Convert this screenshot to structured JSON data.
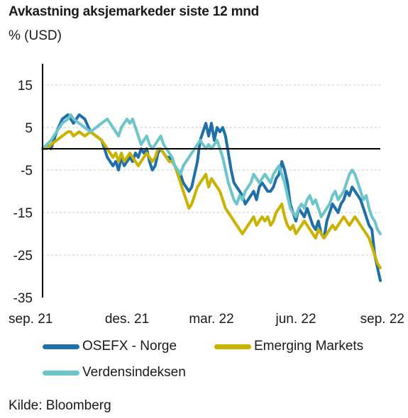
{
  "title": "Avkastning aksjemarkeder siste 12 mnd",
  "subtitle": "% (USD)",
  "source": "Kilde: Bloomberg",
  "colors": {
    "osefx": "#1f6fa8",
    "emerging": "#c9b200",
    "world": "#6cc5c8",
    "axis": "#000000",
    "grid": "#c8c8c8"
  },
  "chart_data": {
    "type": "line",
    "ylabel": "% (USD)",
    "ylim": [
      -35,
      20
    ],
    "yticks": [
      15,
      5,
      -5,
      -15,
      -25,
      -35
    ],
    "xlim": [
      0,
      12
    ],
    "xticks": [
      {
        "label": "sep. 21",
        "month": 0
      },
      {
        "label": "des. 21",
        "month": 3
      },
      {
        "label": "mar. 22",
        "month": 6
      },
      {
        "label": "jun. 22",
        "month": 9
      },
      {
        "label": "sep. 22",
        "month": 12
      }
    ],
    "grid": "horizontal dashed",
    "zero_line": true,
    "legend": "bottom",
    "series": [
      {
        "name": "OSEFX - Norge",
        "color": "#1f6fa8",
        "x": [
          0,
          0.15,
          0.3,
          0.5,
          0.7,
          0.9,
          1.0,
          1.1,
          1.3,
          1.5,
          1.7,
          1.9,
          2.1,
          2.3,
          2.5,
          2.6,
          2.7,
          2.8,
          2.9,
          3.0,
          3.1,
          3.2,
          3.3,
          3.4,
          3.5,
          3.6,
          3.7,
          3.8,
          3.9,
          4.0,
          4.1,
          4.2,
          4.3,
          4.4,
          4.5,
          4.6,
          4.7,
          4.8,
          4.9,
          5.0,
          5.1,
          5.2,
          5.3,
          5.4,
          5.5,
          5.6,
          5.7,
          5.8,
          5.9,
          6.0,
          6.1,
          6.2,
          6.3,
          6.4,
          6.5,
          6.6,
          6.7,
          6.8,
          6.9,
          7.0,
          7.1,
          7.2,
          7.3,
          7.4,
          7.5,
          7.6,
          7.7,
          7.8,
          7.9,
          8.0,
          8.1,
          8.2,
          8.3,
          8.4,
          8.5,
          8.6,
          8.7,
          8.8,
          8.9,
          9.0,
          9.1,
          9.2,
          9.3,
          9.4,
          9.5,
          9.6,
          9.7,
          9.8,
          9.9,
          10.0,
          10.1,
          10.2,
          10.3,
          10.4,
          10.5,
          10.6,
          10.7,
          10.8,
          10.9,
          11.0,
          11.1,
          11.2,
          11.3,
          11.4,
          11.5,
          11.6,
          11.7,
          11.8,
          11.9,
          12.0
        ],
        "values": [
          0,
          1,
          0,
          4,
          7,
          8,
          7,
          6,
          8,
          7,
          4,
          3,
          2,
          -2,
          -4,
          -3,
          -5,
          -2,
          -4,
          -3,
          -2,
          -3,
          -1,
          -2,
          0,
          -1,
          0,
          -3,
          -5,
          -4,
          -1,
          0,
          -1,
          -2,
          -2,
          -3,
          -4,
          -5,
          -6,
          -8,
          -9,
          -10,
          -9,
          -6,
          -3,
          2,
          4,
          6,
          3,
          6,
          2,
          5,
          4,
          5,
          3,
          -1,
          -5,
          -8,
          -9,
          -10,
          -11,
          -13,
          -12,
          -11,
          -10,
          -12,
          -9,
          -8,
          -9,
          -10,
          -10,
          -9,
          -7,
          -6,
          -3,
          -5,
          -8,
          -13,
          -15,
          -17,
          -14,
          -15,
          -16,
          -14,
          -16,
          -18,
          -19,
          -17,
          -20,
          -21,
          -17,
          -15,
          -13,
          -14,
          -15,
          -13,
          -12,
          -10,
          -11,
          -9,
          -10,
          -11,
          -12,
          -14,
          -16,
          -18,
          -19,
          -25,
          -28,
          -31
        ]
      },
      {
        "name": "Emerging Markets",
        "color": "#c9b200",
        "x": [
          0,
          0.15,
          0.3,
          0.5,
          0.7,
          0.9,
          1.0,
          1.1,
          1.3,
          1.5,
          1.7,
          1.9,
          2.1,
          2.3,
          2.5,
          2.6,
          2.7,
          2.8,
          2.9,
          3.0,
          3.1,
          3.2,
          3.3,
          3.4,
          3.5,
          3.6,
          3.7,
          3.8,
          3.9,
          4.0,
          4.1,
          4.2,
          4.3,
          4.4,
          4.5,
          4.6,
          4.7,
          4.8,
          4.9,
          5.0,
          5.1,
          5.2,
          5.3,
          5.4,
          5.5,
          5.6,
          5.7,
          5.8,
          5.9,
          6.0,
          6.1,
          6.2,
          6.3,
          6.4,
          6.5,
          6.6,
          6.7,
          6.8,
          6.9,
          7.0,
          7.1,
          7.2,
          7.3,
          7.4,
          7.5,
          7.6,
          7.7,
          7.8,
          7.9,
          8.0,
          8.1,
          8.2,
          8.3,
          8.4,
          8.5,
          8.6,
          8.7,
          8.8,
          8.9,
          9.0,
          9.1,
          9.2,
          9.3,
          9.4,
          9.5,
          9.6,
          9.7,
          9.8,
          9.9,
          10.0,
          10.1,
          10.2,
          10.3,
          10.4,
          10.5,
          10.6,
          10.7,
          10.8,
          10.9,
          11.0,
          11.1,
          11.2,
          11.3,
          11.4,
          11.5,
          11.6,
          11.7,
          11.8,
          11.9,
          12.0
        ],
        "values": [
          0,
          0,
          1,
          2,
          3,
          4,
          4,
          3,
          4,
          3,
          4,
          3,
          2,
          0,
          -2,
          -1,
          -3,
          -1,
          -3,
          -2,
          -1,
          -2,
          -3,
          -4,
          -3,
          -2,
          -1,
          -2,
          -3,
          -2,
          0,
          0,
          -1,
          -2,
          -3,
          -3,
          -4,
          -6,
          -8,
          -10,
          -12,
          -14,
          -13,
          -11,
          -9,
          -8,
          -7,
          -6,
          -9,
          -7,
          -8,
          -9,
          -10,
          -12,
          -14,
          -15,
          -16,
          -17,
          -18,
          -19,
          -20,
          -19,
          -18,
          -17,
          -16,
          -18,
          -17,
          -16,
          -17,
          -16,
          -18,
          -17,
          -15,
          -14,
          -13,
          -16,
          -18,
          -19,
          -18,
          -20,
          -19,
          -18,
          -17,
          -18,
          -19,
          -20,
          -21,
          -19,
          -20,
          -21,
          -20,
          -19,
          -18,
          -19,
          -18,
          -17,
          -16,
          -17,
          -18,
          -17,
          -16,
          -17,
          -18,
          -19,
          -20,
          -21,
          -23,
          -25,
          -27,
          -28
        ]
      },
      {
        "name": "Verdensindeksen",
        "color": "#6cc5c8",
        "x": [
          0,
          0.15,
          0.3,
          0.5,
          0.7,
          0.9,
          1.0,
          1.1,
          1.3,
          1.5,
          1.7,
          1.9,
          2.1,
          2.3,
          2.5,
          2.6,
          2.7,
          2.8,
          2.9,
          3.0,
          3.1,
          3.2,
          3.3,
          3.4,
          3.5,
          3.6,
          3.7,
          3.8,
          3.9,
          4.0,
          4.1,
          4.2,
          4.3,
          4.4,
          4.5,
          4.6,
          4.7,
          4.8,
          4.9,
          5.0,
          5.1,
          5.2,
          5.3,
          5.4,
          5.5,
          5.6,
          5.7,
          5.8,
          5.9,
          6.0,
          6.1,
          6.2,
          6.3,
          6.4,
          6.5,
          6.6,
          6.7,
          6.8,
          6.9,
          7.0,
          7.1,
          7.2,
          7.3,
          7.4,
          7.5,
          7.6,
          7.7,
          7.8,
          7.9,
          8.0,
          8.1,
          8.2,
          8.3,
          8.4,
          8.5,
          8.6,
          8.7,
          8.8,
          8.9,
          9.0,
          9.1,
          9.2,
          9.3,
          9.4,
          9.5,
          9.6,
          9.7,
          9.8,
          9.9,
          10.0,
          10.1,
          10.2,
          10.3,
          10.4,
          10.5,
          10.6,
          10.7,
          10.8,
          10.9,
          11.0,
          11.1,
          11.2,
          11.3,
          11.4,
          11.5,
          11.6,
          11.7,
          11.8,
          11.9,
          12.0
        ],
        "values": [
          0,
          1,
          2,
          4,
          6,
          7,
          8,
          7,
          6,
          5,
          4,
          5,
          6,
          7,
          5,
          4,
          3,
          5,
          6,
          7,
          6,
          7,
          5,
          3,
          1,
          2,
          3,
          1,
          0,
          1,
          2,
          3,
          1,
          0,
          -1,
          -2,
          -4,
          -5,
          -6,
          -4,
          -3,
          -2,
          -1,
          0,
          1,
          2,
          1,
          0,
          1,
          0,
          1,
          2,
          0,
          -2,
          -5,
          -8,
          -10,
          -12,
          -13,
          -11,
          -12,
          -10,
          -9,
          -8,
          -6,
          -7,
          -8,
          -7,
          -6,
          -7,
          -8,
          -6,
          -5,
          -4,
          -6,
          -8,
          -11,
          -14,
          -15,
          -16,
          -14,
          -13,
          -14,
          -12,
          -11,
          -13,
          -12,
          -14,
          -16,
          -15,
          -14,
          -13,
          -11,
          -10,
          -12,
          -11,
          -10,
          -8,
          -6,
          -5,
          -6,
          -8,
          -10,
          -12,
          -11,
          -14,
          -16,
          -17,
          -19,
          -20
        ]
      }
    ]
  },
  "legend": {
    "items": [
      {
        "label": "OSEFX - Norge",
        "color": "#1f6fa8"
      },
      {
        "label": "Emerging Markets",
        "color": "#c9b200"
      },
      {
        "label": "Verdensindeksen",
        "color": "#6cc5c8"
      }
    ]
  }
}
